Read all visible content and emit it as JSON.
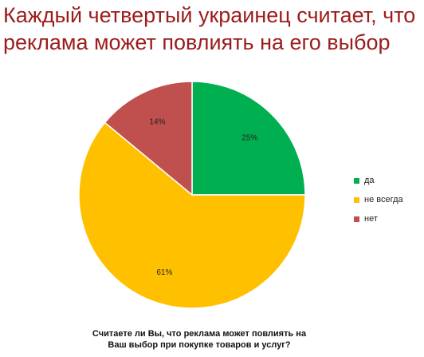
{
  "headline": {
    "line1": "Каждый четвертый украинец считает, что",
    "line2": "реклама может повлиять на его выбор"
  },
  "chart_data": {
    "type": "pie",
    "categories": [
      "да",
      "не всегда",
      "нет"
    ],
    "values": [
      25,
      61,
      14
    ],
    "labels": [
      "25%",
      "61%",
      "14%"
    ],
    "colors": [
      "#00b050",
      "#ffc000",
      "#c0504d"
    ],
    "legend_position": "right",
    "title": "Считаете ли Вы, что реклама может повлиять на Ваш выбор при покупке товаров и услуг?"
  },
  "question": {
    "line1": "Считаете ли Вы, что реклама может повлиять на",
    "line2": "Ваш выбор при покупке товаров и услуг?"
  }
}
